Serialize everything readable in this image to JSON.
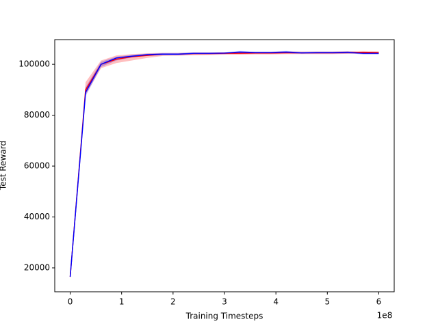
{
  "chart_data": {
    "type": "line",
    "xlabel": "Training Timesteps",
    "ylabel": "Test Reward",
    "x_offset_label": "1e8",
    "x": [
      0,
      0.3,
      0.6,
      0.9,
      1.2,
      1.5,
      1.8,
      2.1,
      2.4,
      2.7,
      3.0,
      3.3,
      3.6,
      3.9,
      4.2,
      4.5,
      4.8,
      5.1,
      5.4,
      5.7,
      6.0
    ],
    "series": [
      {
        "color": "#ff0000",
        "values": [
          16500,
          90000,
          100000,
          102000,
          103000,
          103500,
          104000,
          104000,
          104200,
          104200,
          104300,
          104300,
          104400,
          104400,
          104500,
          104500,
          104500,
          104500,
          104600,
          104700,
          104600
        ],
        "lower": [
          16000,
          88000,
          98500,
          100500,
          101500,
          102500,
          103300,
          103400,
          103600,
          103700,
          103800,
          103800,
          103900,
          103900,
          104000,
          104000,
          104000,
          104000,
          104100,
          104200,
          104100
        ],
        "upper": [
          17000,
          93000,
          101500,
          103500,
          104000,
          104300,
          104500,
          104500,
          104700,
          104700,
          104800,
          104800,
          104900,
          104900,
          105000,
          105000,
          105000,
          105000,
          105100,
          105200,
          105100
        ]
      },
      {
        "color": "#0000ff",
        "values": [
          16500,
          89000,
          100000,
          102500,
          103200,
          103800,
          104000,
          104000,
          104300,
          104300,
          104400,
          104800,
          104600,
          104600,
          104800,
          104500,
          104600,
          104600,
          104700,
          104300,
          104300
        ],
        "lower": [
          16000,
          87500,
          99000,
          101500,
          102700,
          103400,
          103600,
          103600,
          103900,
          103900,
          104000,
          104400,
          104200,
          104200,
          104400,
          104100,
          104200,
          104200,
          104300,
          103900,
          103900
        ],
        "upper": [
          17000,
          91000,
          101000,
          103000,
          103700,
          104200,
          104400,
          104400,
          104700,
          104700,
          104800,
          105200,
          105000,
          105000,
          105200,
          104900,
          105000,
          105000,
          105100,
          104700,
          104700
        ]
      }
    ],
    "band_opacity": 0.25,
    "xlim": [
      -0.3,
      6.3
    ],
    "xticks": [
      0,
      1,
      2,
      3,
      4,
      5,
      6
    ],
    "ylim": [
      10600,
      109700
    ],
    "yticks": [
      20000,
      40000,
      60000,
      80000,
      100000
    ],
    "grid": false
  }
}
